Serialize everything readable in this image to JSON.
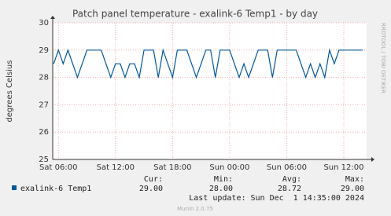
{
  "chart_data": {
    "type": "line",
    "title": "Patch panel temperature - exalink-6 Temp1 - by day",
    "y_label": "degrees Celsius",
    "side_label": "RRDTOOL / TOBI OETIKER",
    "x": [
      5.5,
      6,
      6.5,
      7,
      7.5,
      8,
      8.5,
      9,
      9.5,
      10,
      10.5,
      11,
      11.5,
      12,
      12.5,
      13,
      13.5,
      14,
      14.5,
      15,
      15.5,
      16,
      16.5,
      17,
      17.5,
      18,
      18.5,
      19,
      19.5,
      20,
      20.5,
      21,
      21.5,
      22,
      22.5,
      23,
      23.5,
      24,
      24.5,
      25,
      25.5,
      26,
      26.5,
      27,
      27.5,
      28,
      28.5,
      29,
      29.5,
      30,
      30.5,
      31,
      31.5,
      32,
      32.5,
      33,
      33.5,
      34,
      34.5,
      35,
      35.5,
      36,
      36.5,
      37,
      37.5,
      38
    ],
    "series": [
      {
        "name": "exalink-6 Temp1",
        "color": "#00579a",
        "values": [
          28.5,
          29,
          28.5,
          29,
          28.5,
          28,
          28.5,
          29,
          29,
          29,
          29,
          28.5,
          28,
          28.5,
          28.5,
          28,
          28.5,
          28.5,
          28,
          29,
          29,
          29,
          28,
          29,
          28.5,
          28,
          29,
          29,
          29,
          28.5,
          28,
          28.5,
          29,
          29,
          28,
          29,
          29,
          29,
          28.5,
          28,
          28.5,
          28,
          28.5,
          29,
          29,
          29,
          28,
          29,
          29,
          29,
          29,
          29,
          28.5,
          28,
          28.5,
          28,
          28.5,
          28,
          29,
          28.5,
          29,
          29,
          29,
          29,
          29,
          29
        ]
      }
    ],
    "xlim": [
      5.4,
      38.4
    ],
    "ylim": [
      25,
      30
    ],
    "xticks": [
      {
        "value": 6,
        "label": "Sat 06:00"
      },
      {
        "value": 12,
        "label": "Sat 12:00"
      },
      {
        "value": 18,
        "label": "Sat 18:00"
      },
      {
        "value": 24,
        "label": "Sun 00:00"
      },
      {
        "value": 30,
        "label": "Sun 06:00"
      },
      {
        "value": 36,
        "label": "Sun 12:00"
      }
    ],
    "yticks": [
      25,
      26,
      27,
      28,
      29,
      30
    ],
    "grid": true,
    "stats": {
      "headers": [
        "Cur:",
        "Min:",
        "Avg:",
        "Max:"
      ],
      "values": [
        "29.00",
        "28.00",
        "28.72",
        "29.00"
      ]
    },
    "last_update": "Last update: Sun Dec  1 14:35:00 2024",
    "footer": "Munin 2.0.75"
  }
}
